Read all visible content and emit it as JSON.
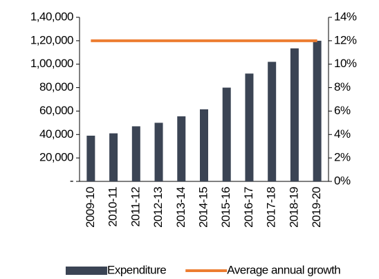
{
  "chart_data": {
    "type": "bar",
    "categories": [
      "2009-10",
      "2010-11",
      "2011-12",
      "2012-13",
      "2013-14",
      "2014-15",
      "2015-16",
      "2016-17",
      "2017-18",
      "2018-19",
      "2019-20"
    ],
    "series": [
      {
        "name": "Expenditure",
        "type": "bar",
        "color": "#3b4454",
        "values": [
          39000,
          41000,
          47000,
          50000,
          55500,
          61500,
          80000,
          92000,
          102000,
          113500,
          120000
        ]
      },
      {
        "name": "Average annual growth",
        "type": "line",
        "axis": "y2",
        "color": "#ed7d31",
        "values": [
          12,
          12,
          12,
          12,
          12,
          12,
          12,
          12,
          12,
          12,
          12
        ]
      }
    ],
    "ylim": [
      0,
      140000
    ],
    "yticks": [
      {
        "value": 0,
        "label": "-"
      },
      {
        "value": 20000,
        "label": "20,000"
      },
      {
        "value": 40000,
        "label": "40,000"
      },
      {
        "value": 60000,
        "label": "60,000"
      },
      {
        "value": 80000,
        "label": "80,000"
      },
      {
        "value": 100000,
        "label": "1,00,000"
      },
      {
        "value": 120000,
        "label": "1,20,000"
      },
      {
        "value": 140000,
        "label": "1,40,000"
      }
    ],
    "y2lim": [
      0,
      14
    ],
    "y2ticks": [
      {
        "value": 0,
        "label": "0%"
      },
      {
        "value": 2,
        "label": "2%"
      },
      {
        "value": 4,
        "label": "4%"
      },
      {
        "value": 6,
        "label": "6%"
      },
      {
        "value": 8,
        "label": "8%"
      },
      {
        "value": 10,
        "label": "10%"
      },
      {
        "value": 12,
        "label": "12%"
      },
      {
        "value": 14,
        "label": "14%"
      }
    ],
    "legend": "bottom"
  }
}
